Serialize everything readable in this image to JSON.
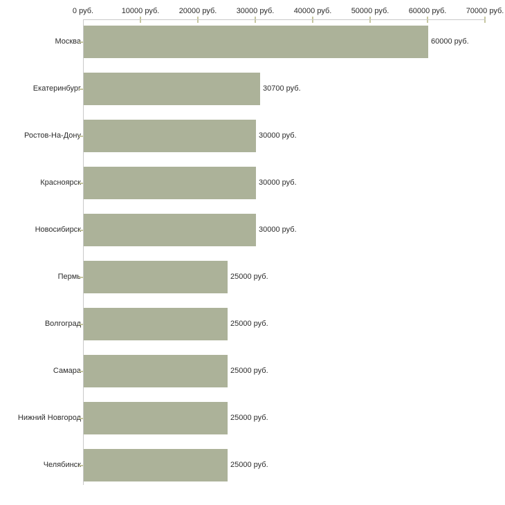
{
  "chart_data": {
    "type": "bar",
    "orientation": "horizontal",
    "title": "",
    "xlabel": "",
    "ylabel": "",
    "unit": "руб.",
    "categories": [
      "Москва",
      "Екатеринбург",
      "Ростов-На-Дону",
      "Красноярск",
      "Новосибирск",
      "Пермь",
      "Волгоград",
      "Самара",
      "Нижний Новгород",
      "Челябинск"
    ],
    "values": [
      60000,
      30700,
      30000,
      30000,
      30000,
      25000,
      25000,
      25000,
      25000,
      25000
    ],
    "value_labels": [
      "60000 руб.",
      "30700 руб.",
      "30000 руб.",
      "30000 руб.",
      "30000 руб.",
      "25000 руб.",
      "25000 руб.",
      "25000 руб.",
      "25000 руб.",
      "25000 руб."
    ],
    "axis_ticks": [
      0,
      10000,
      20000,
      30000,
      40000,
      50000,
      60000,
      70000
    ],
    "axis_tick_labels": [
      "0 руб.",
      "10000 руб.",
      "20000 руб.",
      "30000 руб.",
      "40000 руб.",
      "50000 руб.",
      "60000 руб.",
      "70000 руб."
    ],
    "xlim": [
      0,
      70000
    ],
    "grid": false,
    "legend": false,
    "colors": {
      "bar": "#acb299",
      "axis_line": "#c9c9c9",
      "tick": "#c6c69e",
      "text": "#2b2b2b",
      "background": "#ffffff"
    }
  }
}
